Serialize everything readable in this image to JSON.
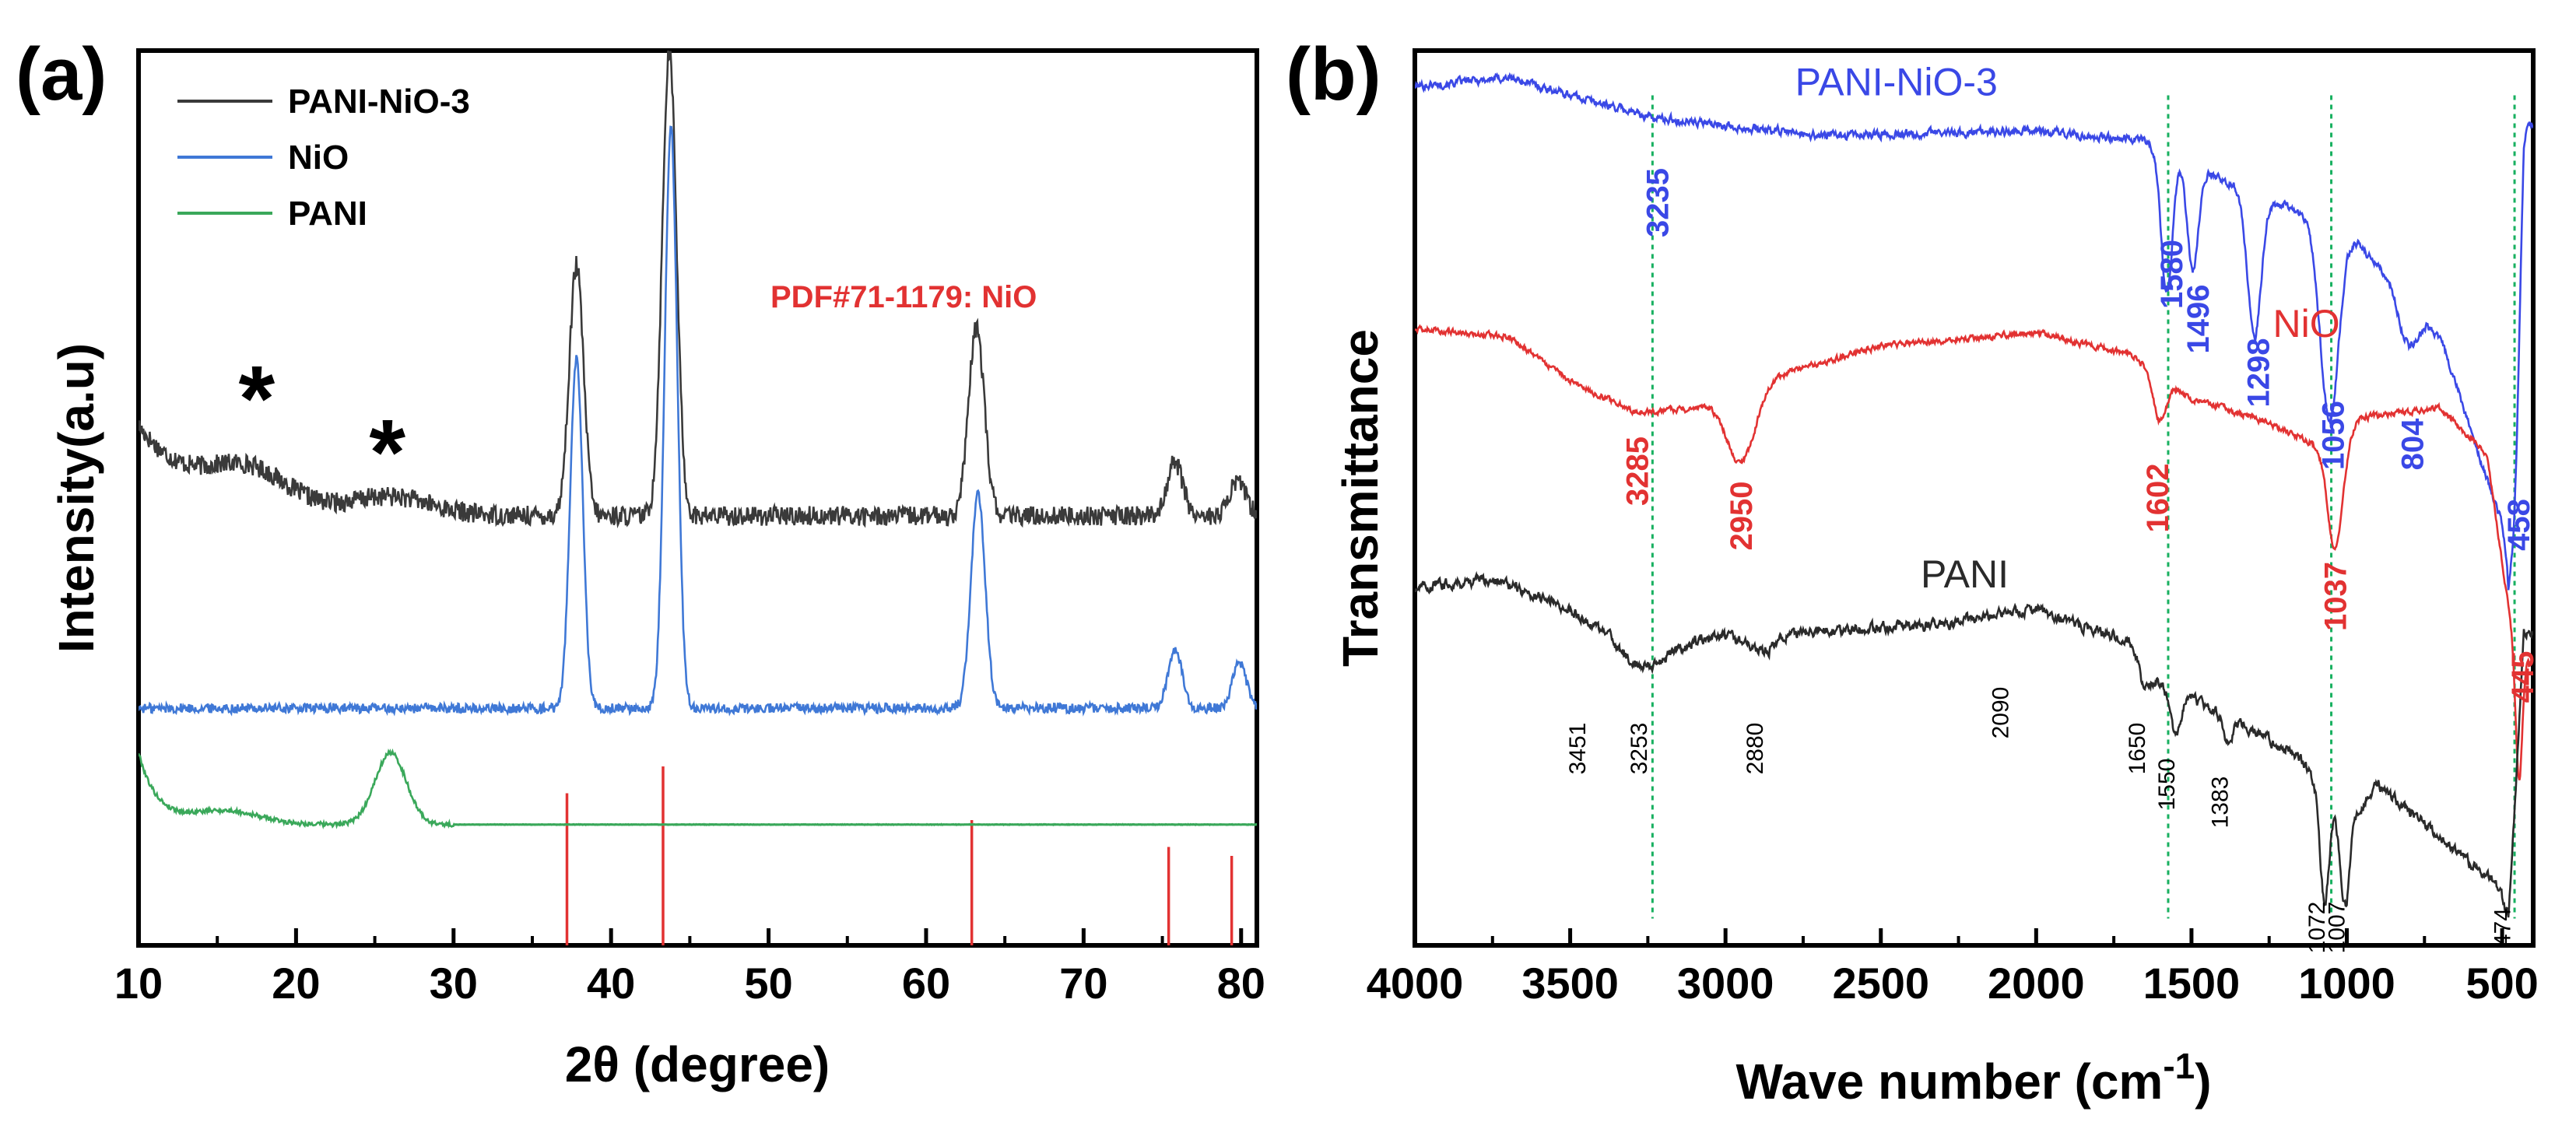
{
  "colors": {
    "black_series": "#3a3a3a",
    "blue_series": "#3f78d6",
    "green_series": "#3aa85a",
    "red_ref": "#e23232",
    "ftir_blue": "#3a48e6",
    "ftir_red": "#e23232",
    "ftir_black": "#2a2a2a",
    "guide_green": "#18b060"
  },
  "chart_data": [
    {
      "panel": "(a)",
      "type": "line",
      "xlabel": "2θ (degree)",
      "ylabel": "Intensity(a.u)",
      "xlim": [
        10,
        81
      ],
      "ylim": [
        0,
        100
      ],
      "xticks": [
        10,
        20,
        30,
        40,
        50,
        60,
        70,
        80
      ],
      "legend": [
        {
          "name": "PANI-NiO-3",
          "color": "#3a3a3a"
        },
        {
          "name": "NiO",
          "color": "#3f78d6"
        },
        {
          "name": "PANI",
          "color": "#3aa85a"
        }
      ],
      "reference_label": "PDF#71-1179: NiO",
      "reference_lines": [
        37.2,
        43.3,
        62.9,
        75.4,
        79.4
      ],
      "reference_heights": [
        17,
        20,
        14,
        11,
        10
      ],
      "star_positions": [
        {
          "x": 17.5,
          "y": 61
        },
        {
          "x": 25.8,
          "y": 55
        }
      ],
      "star_symbol": "*",
      "series": [
        {
          "name": "PANI-NiO-3",
          "baseline": 48,
          "start_level": 58,
          "peaks": [
            [
              37.8,
              28,
              0.45
            ],
            [
              43.7,
              52,
              0.45
            ],
            [
              63.2,
              21,
              0.5
            ],
            [
              75.8,
              6,
              0.5
            ],
            [
              79.8,
              4,
              0.5
            ],
            [
              17,
              4,
              2.5
            ],
            [
              26,
              2,
              2.5
            ]
          ],
          "decay": [
            8,
            4
          ]
        },
        {
          "name": "NiO",
          "baseline": 26.5,
          "start_level": 26.5,
          "peaks": [
            [
              37.8,
              39,
              0.4
            ],
            [
              43.8,
              65,
              0.4
            ],
            [
              63.3,
              24,
              0.45
            ],
            [
              75.8,
              6.5,
              0.45
            ],
            [
              79.9,
              5,
              0.45
            ]
          ],
          "decay": [
            0,
            1
          ]
        },
        {
          "name": "PANI",
          "baseline": 13.5,
          "start_level": 21.5,
          "peaks": [
            [
              26,
              8,
              1.0
            ],
            [
              15.5,
              1.5,
              2.2
            ]
          ],
          "decay": [
            8,
            1.2
          ]
        }
      ]
    },
    {
      "panel": "(b)",
      "type": "line",
      "xlabel": "Wave number (cm",
      "xlabel_sup": "-1",
      "xlabel_end": ")",
      "ylabel": "Transmittance",
      "xlim": [
        4000,
        400
      ],
      "ylim": [
        0,
        100
      ],
      "xticks": [
        4000,
        3500,
        3000,
        2500,
        2000,
        1500,
        1000,
        500
      ],
      "guide_lines": [
        3235,
        1575,
        1050,
        460
      ],
      "series": [
        {
          "name": "PANI-NiO-3",
          "color": "#3a48e6",
          "label_pos": {
            "x": 2450,
            "y": 95
          },
          "baseline": [
            [
              4000,
              96
            ],
            [
              3700,
              97
            ],
            [
              3235,
              92.5
            ],
            [
              2700,
              90.5
            ],
            [
              2000,
              91
            ],
            [
              1650,
              90
            ],
            [
              1300,
              84
            ],
            [
              1000,
              80
            ],
            [
              700,
              68
            ],
            [
              480,
              45
            ],
            [
              430,
              92
            ]
          ],
          "bands": [
            [
              1580,
              16,
              18
            ],
            [
              1496,
              12,
              18
            ],
            [
              1298,
              16,
              22
            ],
            [
              1056,
              22,
              30
            ],
            [
              804,
              5,
              30
            ],
            [
              458,
              15,
              15
            ]
          ],
          "peak_labels": [
            {
              "text": "3235",
              "x": 3220,
              "y": 83
            },
            {
              "text": "1580",
              "x": 1565,
              "y": 75
            },
            {
              "text": "1496",
              "x": 1480,
              "y": 70
            },
            {
              "text": "1298",
              "x": 1285,
              "y": 64
            },
            {
              "text": "1056",
              "x": 1045,
              "y": 57
            },
            {
              "text": "804",
              "x": 790,
              "y": 56
            },
            {
              "text": "458",
              "x": 448,
              "y": 47
            }
          ]
        },
        {
          "name": "NiO",
          "color": "#e23232",
          "label_pos": {
            "x": 1130,
            "y": 68
          },
          "baseline": [
            [
              4000,
              69
            ],
            [
              3700,
              68
            ],
            [
              3500,
              63
            ],
            [
              3285,
              59.5
            ],
            [
              3100,
              60
            ],
            [
              2800,
              64
            ],
            [
              2500,
              67
            ],
            [
              2000,
              68.5
            ],
            [
              1700,
              66
            ],
            [
              1500,
              61
            ],
            [
              1300,
              59
            ],
            [
              1100,
              56
            ],
            [
              950,
              59
            ],
            [
              700,
              60
            ],
            [
              550,
              55
            ],
            [
              460,
              33
            ],
            [
              420,
              32
            ]
          ],
          "bands": [
            [
              2950,
              8,
              45
            ],
            [
              1602,
              5,
              20
            ],
            [
              1037,
              13,
              25
            ],
            [
              445,
              14,
              10
            ]
          ],
          "peak_labels": [
            {
              "text": "3285",
              "x": 3285,
              "y": 53
            },
            {
              "text": "2950",
              "x": 2950,
              "y": 48
            },
            {
              "text": "1602",
              "x": 1610,
              "y": 50
            },
            {
              "text": "1037",
              "x": 1037,
              "y": 39
            },
            {
              "text": "445",
              "x": 435,
              "y": 30
            }
          ]
        },
        {
          "name": "PANI",
          "color": "#2a2a2a",
          "label_pos": {
            "x": 2230,
            "y": 40
          },
          "baseline": [
            [
              4000,
              40
            ],
            [
              3750,
              41
            ],
            [
              3500,
              37.5
            ],
            [
              3300,
              33
            ],
            [
              3000,
              34.5
            ],
            [
              2700,
              35
            ],
            [
              2300,
              36
            ],
            [
              2000,
              37.5
            ],
            [
              1700,
              34
            ],
            [
              1600,
              29
            ],
            [
              1400,
              26
            ],
            [
              1300,
              24
            ],
            [
              1150,
              21
            ],
            [
              1000,
              13
            ],
            [
              900,
              18
            ],
            [
              800,
              15
            ],
            [
              600,
              9
            ],
            [
              480,
              6
            ],
            [
              430,
              35
            ]
          ],
          "bands": [
            [
              3253,
              2,
              60
            ],
            [
              2880,
              2,
              40
            ],
            [
              1650,
              3,
              15
            ],
            [
              1550,
              5,
              15
            ],
            [
              1383,
              3,
              15
            ],
            [
              1072,
              12,
              14
            ],
            [
              1007,
              9,
              14
            ],
            [
              474,
              3,
              20
            ]
          ],
          "peak_labels": [
            {
              "text": "3451",
              "x": 3451,
              "y": 22
            },
            {
              "text": "3253",
              "x": 3253,
              "y": 22
            },
            {
              "text": "2880",
              "x": 2880,
              "y": 22
            },
            {
              "text": "2090",
              "x": 2090,
              "y": 26
            },
            {
              "text": "1650",
              "x": 1650,
              "y": 22
            },
            {
              "text": "1550",
              "x": 1555,
              "y": 18
            },
            {
              "text": "1383",
              "x": 1383,
              "y": 16
            },
            {
              "text": "1072",
              "x": 1072,
              "y": 2
            },
            {
              "text": "1007",
              "x": 1007,
              "y": 2
            },
            {
              "text": "474",
              "x": 474,
              "y": 2
            }
          ]
        }
      ]
    }
  ]
}
